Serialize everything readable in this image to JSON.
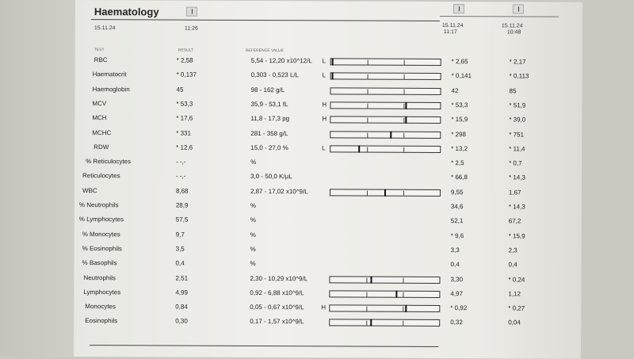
{
  "report": {
    "title": "Haematology",
    "date": "15.11.24",
    "time": "11:26",
    "header_test": "TEST",
    "header_result": "RESULT",
    "header_ref": "REFERENCE VALUE"
  },
  "previous": [
    {
      "date": "15.11.24",
      "time": "11:17"
    },
    {
      "date": "15.11.24",
      "time": "10:48"
    }
  ],
  "rows": [
    {
      "label": "RBC",
      "result": "* 2,58",
      "ref": "5,54 - 12,20 x10^12/L",
      "flag": "L",
      "prev1": "* 2,65",
      "prev2": "* 2,17",
      "marker": 0.01,
      "ticks": [
        0.33,
        0.67
      ]
    },
    {
      "label": "Haematocrit",
      "result": "* 0,137",
      "ref": "0,303 - 0,523 L/L",
      "flag": "L",
      "prev1": "* 0,141",
      "prev2": "* 0,113",
      "marker": 0.01,
      "ticks": [
        0.33,
        0.67
      ]
    },
    {
      "label": "Haemoglobin",
      "result": "45",
      "ref": "98 - 162 g/L",
      "flag": "",
      "prev1": "42",
      "prev2": "85",
      "marker": null,
      "ticks": [
        0.33,
        0.67
      ]
    },
    {
      "label": "MCV",
      "result": "* 53,3",
      "ref": "35,9 - 53,1 fL",
      "flag": "H",
      "prev1": "* 53,3",
      "prev2": "* 51,9",
      "marker": 0.68,
      "ticks": [
        0.33,
        0.67
      ]
    },
    {
      "label": "MCH",
      "result": "* 17,6",
      "ref": "11,8 - 17,3 pg",
      "flag": "H",
      "prev1": "* 15,9",
      "prev2": "* 39,0",
      "marker": 0.68,
      "ticks": [
        0.33,
        0.67
      ]
    },
    {
      "label": "MCHC",
      "result": "* 331",
      "ref": "281 - 358 g/L",
      "flag": "",
      "prev1": "* 298",
      "prev2": "* 751",
      "marker": 0.54,
      "ticks": [
        0.33,
        0.67
      ]
    },
    {
      "label": "RDW",
      "result": "* 12,6",
      "ref": "15,0 - 27,0 %",
      "flag": "L",
      "prev1": "* 13,2",
      "prev2": "* 11,4",
      "marker": 0.25,
      "ticks": [
        0.33,
        0.67
      ]
    },
    {
      "label": "% Reticulocytes",
      "result": "- -,-",
      "ref": "%",
      "flag": "",
      "prev1": "* 2,5",
      "prev2": "* 0,7",
      "marker": null,
      "ticks": null
    },
    {
      "label": "Reticulocytes",
      "result": "- -,-",
      "ref": "3,0 - 50,0 K/µL",
      "flag": "",
      "prev1": "* 66,8",
      "prev2": "* 14,3",
      "marker": null,
      "ticks": null
    },
    {
      "label": "WBC",
      "result": "8,68",
      "ref": "2,87 - 17,02 x10^9/L",
      "flag": "",
      "prev1": "9,55",
      "prev2": "1,67",
      "marker": 0.49,
      "ticks": [
        0.33,
        0.67
      ]
    },
    {
      "label": "% Neutrophils",
      "result": "28,9",
      "ref": "%",
      "flag": "",
      "prev1": "34,6",
      "prev2": "* 14,3",
      "marker": null,
      "ticks": null
    },
    {
      "label": "% Lymphocytes",
      "result": "57,5",
      "ref": "%",
      "flag": "",
      "prev1": "52,1",
      "prev2": "67,2",
      "marker": null,
      "ticks": null
    },
    {
      "label": "% Monocytes",
      "result": "9,7",
      "ref": "%",
      "flag": "",
      "prev1": "* 9,6",
      "prev2": "* 15,9",
      "marker": null,
      "ticks": null
    },
    {
      "label": "% Eosinophils",
      "result": "3,5",
      "ref": "%",
      "flag": "",
      "prev1": "3,3",
      "prev2": "2,3",
      "marker": null,
      "ticks": null
    },
    {
      "label": "% Basophils",
      "result": "0,4",
      "ref": "%",
      "flag": "",
      "prev1": "0,4",
      "prev2": "0,4",
      "marker": null,
      "ticks": null
    },
    {
      "label": "Neutrophils",
      "result": "2,51",
      "ref": "2,30 - 10,29 x10^9/L",
      "flag": "",
      "prev1": "3,30",
      "prev2": "* 0,24",
      "marker": 0.37,
      "ticks": [
        0.33,
        0.67
      ]
    },
    {
      "label": "Lymphocytes",
      "result": "4,99",
      "ref": "0,92 - 6,88 x10^9/L",
      "flag": "",
      "prev1": "4,97",
      "prev2": "1,12",
      "marker": 0.6,
      "ticks": [
        0.33,
        0.67
      ]
    },
    {
      "label": "Monocytes",
      "result": "0,84",
      "ref": "0,05 - 0,67 x10^9/L",
      "flag": "H",
      "prev1": "* 0,92",
      "prev2": "* 0,27",
      "marker": 0.69,
      "ticks": [
        0.33,
        0.67
      ]
    },
    {
      "label": "Eosinophils",
      "result": "0,30",
      "ref": "0,17 - 1,57 x10^9/L",
      "flag": "",
      "prev1": "0,32",
      "prev2": "0,04",
      "marker": 0.37,
      "ticks": [
        0.33,
        0.67
      ]
    }
  ]
}
